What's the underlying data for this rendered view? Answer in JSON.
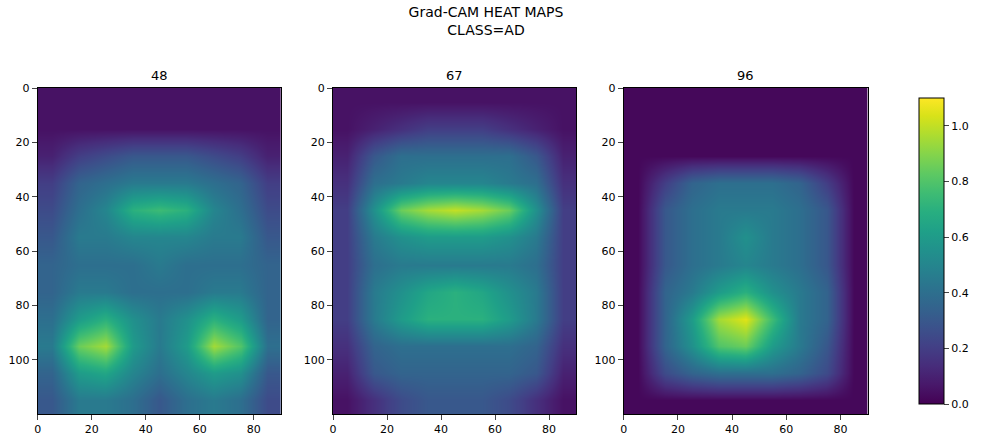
{
  "chart_data": {
    "type": "heatmap",
    "title": "Grad-CAM HEAT MAPS\nCLASS=AD",
    "color": "viridis",
    "x": [
      5,
      15,
      25,
      35,
      45,
      55,
      65,
      75,
      85
    ],
    "y": [
      5,
      15,
      25,
      35,
      45,
      55,
      65,
      75,
      85,
      95,
      105,
      115
    ],
    "xlim": [
      0,
      90
    ],
    "ylim": [
      120,
      0
    ],
    "xticks": [
      0,
      20,
      40,
      60,
      80
    ],
    "yticks": [
      0,
      20,
      40,
      60,
      80,
      100
    ],
    "colorbar": {
      "range": [
        0,
        1.1
      ],
      "ticks": [
        {
          "value": 0,
          "label": "0.0"
        },
        0.2,
        0.4,
        0.6,
        0.8,
        {
          "value": 1,
          "label": "1.0"
        }
      ]
    },
    "panels": [
      {
        "title": "48",
        "cells": [
          [
            0.05,
            0.05,
            0.05,
            0.05,
            0.05,
            0.05,
            0.05,
            0.05,
            0.05
          ],
          [
            0.05,
            0.05,
            0.05,
            0.05,
            0.05,
            0.05,
            0.05,
            0.05,
            0.05
          ],
          [
            0.1,
            0.2,
            0.25,
            0.3,
            0.3,
            0.3,
            0.25,
            0.2,
            0.1
          ],
          [
            0.2,
            0.35,
            0.4,
            0.45,
            0.45,
            0.45,
            0.4,
            0.35,
            0.2
          ],
          [
            0.25,
            0.4,
            0.5,
            0.7,
            0.75,
            0.7,
            0.5,
            0.4,
            0.25
          ],
          [
            0.3,
            0.45,
            0.45,
            0.5,
            0.5,
            0.5,
            0.45,
            0.45,
            0.3
          ],
          [
            0.35,
            0.4,
            0.4,
            0.4,
            0.45,
            0.4,
            0.4,
            0.4,
            0.35
          ],
          [
            0.35,
            0.45,
            0.45,
            0.4,
            0.4,
            0.4,
            0.45,
            0.45,
            0.35
          ],
          [
            0.4,
            0.6,
            0.7,
            0.55,
            0.45,
            0.55,
            0.7,
            0.6,
            0.35
          ],
          [
            0.45,
            0.85,
            0.95,
            0.6,
            0.45,
            0.6,
            0.95,
            0.8,
            0.4
          ],
          [
            0.35,
            0.6,
            0.65,
            0.5,
            0.4,
            0.5,
            0.6,
            0.55,
            0.3
          ],
          [
            0.3,
            0.45,
            0.45,
            0.4,
            0.3,
            0.4,
            0.45,
            0.4,
            0.25
          ]
        ]
      },
      {
        "title": "67",
        "cells": [
          [
            0.05,
            0.05,
            0.05,
            0.05,
            0.05,
            0.05,
            0.05,
            0.05,
            0.05
          ],
          [
            0.05,
            0.1,
            0.15,
            0.2,
            0.2,
            0.2,
            0.15,
            0.1,
            0.05
          ],
          [
            0.1,
            0.3,
            0.4,
            0.4,
            0.4,
            0.4,
            0.4,
            0.3,
            0.1
          ],
          [
            0.15,
            0.4,
            0.45,
            0.5,
            0.5,
            0.5,
            0.45,
            0.4,
            0.15
          ],
          [
            0.2,
            0.55,
            0.85,
            0.95,
            1.0,
            0.95,
            0.85,
            0.55,
            0.2
          ],
          [
            0.2,
            0.45,
            0.55,
            0.6,
            0.6,
            0.6,
            0.55,
            0.45,
            0.2
          ],
          [
            0.2,
            0.4,
            0.45,
            0.45,
            0.45,
            0.45,
            0.45,
            0.4,
            0.2
          ],
          [
            0.2,
            0.45,
            0.55,
            0.65,
            0.7,
            0.65,
            0.55,
            0.45,
            0.2
          ],
          [
            0.2,
            0.45,
            0.6,
            0.7,
            0.7,
            0.7,
            0.6,
            0.45,
            0.2
          ],
          [
            0.15,
            0.35,
            0.4,
            0.4,
            0.4,
            0.4,
            0.4,
            0.35,
            0.15
          ],
          [
            0.1,
            0.3,
            0.35,
            0.35,
            0.35,
            0.35,
            0.35,
            0.3,
            0.1
          ],
          [
            0.05,
            0.15,
            0.25,
            0.3,
            0.3,
            0.3,
            0.25,
            0.15,
            0.05
          ]
        ]
      },
      {
        "title": "96",
        "cells": [
          [
            0.02,
            0.02,
            0.02,
            0.02,
            0.02,
            0.02,
            0.02,
            0.02,
            0.02
          ],
          [
            0.02,
            0.02,
            0.02,
            0.02,
            0.02,
            0.02,
            0.02,
            0.02,
            0.02
          ],
          [
            0.02,
            0.02,
            0.02,
            0.02,
            0.02,
            0.02,
            0.02,
            0.02,
            0.02
          ],
          [
            0.02,
            0.2,
            0.35,
            0.4,
            0.4,
            0.4,
            0.35,
            0.2,
            0.02
          ],
          [
            0.02,
            0.3,
            0.4,
            0.45,
            0.45,
            0.45,
            0.4,
            0.3,
            0.02
          ],
          [
            0.02,
            0.3,
            0.4,
            0.45,
            0.55,
            0.45,
            0.4,
            0.3,
            0.02
          ],
          [
            0.02,
            0.3,
            0.4,
            0.45,
            0.5,
            0.45,
            0.4,
            0.3,
            0.02
          ],
          [
            0.02,
            0.35,
            0.45,
            0.6,
            0.7,
            0.55,
            0.45,
            0.35,
            0.02
          ],
          [
            0.02,
            0.35,
            0.6,
            0.95,
            1.05,
            0.75,
            0.45,
            0.35,
            0.02
          ],
          [
            0.02,
            0.35,
            0.55,
            0.8,
            0.85,
            0.6,
            0.45,
            0.3,
            0.02
          ],
          [
            0.02,
            0.25,
            0.35,
            0.4,
            0.4,
            0.4,
            0.35,
            0.25,
            0.02
          ],
          [
            0.02,
            0.02,
            0.02,
            0.02,
            0.02,
            0.02,
            0.02,
            0.02,
            0.02
          ]
        ]
      }
    ]
  }
}
